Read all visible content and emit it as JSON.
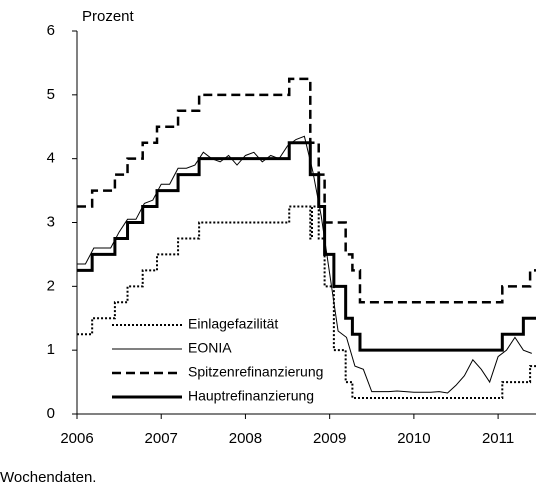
{
  "chart_data": {
    "type": "line",
    "y_label": "Prozent",
    "note": "Wochendaten.",
    "xlim": [
      2006,
      2011.45
    ],
    "xticks": [
      2006,
      2007,
      2008,
      2009,
      2010,
      2011
    ],
    "ylim": [
      0,
      6
    ],
    "yticks": [
      0,
      1,
      2,
      3,
      4,
      5,
      6
    ],
    "series": [
      {
        "name": "Einlagefazilität",
        "color": "#000000",
        "style": "dotted",
        "x": [
          2006,
          2006.18,
          2006.18,
          2006.45,
          2006.45,
          2006.6,
          2006.6,
          2006.78,
          2006.78,
          2006.95,
          2006.95,
          2007.2,
          2007.2,
          2007.45,
          2007.45,
          2008.52,
          2008.52,
          2008.77,
          2008.77,
          2008.79,
          2008.79,
          2008.87,
          2008.87,
          2008.94,
          2008.94,
          2009.05,
          2009.05,
          2009.19,
          2009.19,
          2009.27,
          2009.27,
          2011.05,
          2011.05,
          2011.38,
          2011.38,
          2011.45
        ],
        "values": [
          1.25,
          1.25,
          1.5,
          1.5,
          1.75,
          1.75,
          2,
          2,
          2.25,
          2.25,
          2.5,
          2.5,
          2.75,
          2.75,
          3,
          3,
          3.25,
          3.25,
          2.75,
          2.75,
          3.25,
          3.25,
          2.75,
          2.75,
          2,
          2,
          1,
          1,
          0.5,
          0.5,
          0.25,
          0.25,
          0.5,
          0.5,
          0.75,
          0.75
        ]
      },
      {
        "name": "EONIA",
        "color": "#000000",
        "style": "thin",
        "x": [
          2006,
          2006.1,
          2006.2,
          2006.3,
          2006.4,
          2006.5,
          2006.6,
          2006.7,
          2006.8,
          2006.9,
          2007,
          2007.1,
          2007.2,
          2007.3,
          2007.4,
          2007.5,
          2007.6,
          2007.7,
          2007.8,
          2007.9,
          2008,
          2008.1,
          2008.2,
          2008.3,
          2008.4,
          2008.5,
          2008.6,
          2008.7,
          2008.8,
          2008.9,
          2009,
          2009.1,
          2009.2,
          2009.3,
          2009.4,
          2009.5,
          2009.6,
          2009.7,
          2009.8,
          2009.9,
          2010,
          2010.1,
          2010.2,
          2010.3,
          2010.4,
          2010.5,
          2010.6,
          2010.7,
          2010.8,
          2010.9,
          2011,
          2011.1,
          2011.2,
          2011.3,
          2011.4
        ],
        "values": [
          2.35,
          2.35,
          2.6,
          2.6,
          2.6,
          2.85,
          3.05,
          3.05,
          3.3,
          3.35,
          3.6,
          3.6,
          3.85,
          3.85,
          3.9,
          4.1,
          4.0,
          3.95,
          4.05,
          3.9,
          4.05,
          4.1,
          3.95,
          4.05,
          4.0,
          4.2,
          4.3,
          4.35,
          3.8,
          3.1,
          2.2,
          1.3,
          1.2,
          0.75,
          0.7,
          0.35,
          0.35,
          0.35,
          0.36,
          0.35,
          0.34,
          0.34,
          0.34,
          0.35,
          0.33,
          0.45,
          0.6,
          0.85,
          0.7,
          0.5,
          0.9,
          1.0,
          1.2,
          1.0,
          0.95
        ]
      },
      {
        "name": "Spitzenrefinanzierung",
        "color": "#000000",
        "style": "dashed",
        "x": [
          2006,
          2006.18,
          2006.18,
          2006.45,
          2006.45,
          2006.6,
          2006.6,
          2006.78,
          2006.78,
          2006.95,
          2006.95,
          2007.2,
          2007.2,
          2007.45,
          2007.45,
          2008.52,
          2008.52,
          2008.77,
          2008.77,
          2008.87,
          2008.87,
          2008.94,
          2008.94,
          2009.19,
          2009.19,
          2009.27,
          2009.27,
          2009.36,
          2009.36,
          2011.05,
          2011.05,
          2011.38,
          2011.38,
          2011.45
        ],
        "values": [
          3.25,
          3.25,
          3.5,
          3.5,
          3.75,
          3.75,
          4,
          4,
          4.25,
          4.25,
          4.5,
          4.5,
          4.75,
          4.75,
          5,
          5,
          5.25,
          5.25,
          4.25,
          4.25,
          3.75,
          3.75,
          3,
          3,
          2.5,
          2.5,
          2.25,
          2.25,
          1.75,
          1.75,
          2,
          2,
          2.25,
          2.25
        ]
      },
      {
        "name": "Hauptrefinanzierung",
        "color": "#000000",
        "style": "thick",
        "x": [
          2006,
          2006.18,
          2006.18,
          2006.45,
          2006.45,
          2006.6,
          2006.6,
          2006.78,
          2006.78,
          2006.95,
          2006.95,
          2007.2,
          2007.2,
          2007.45,
          2007.45,
          2008.52,
          2008.52,
          2008.77,
          2008.77,
          2008.87,
          2008.87,
          2008.94,
          2008.94,
          2009.05,
          2009.05,
          2009.19,
          2009.19,
          2009.27,
          2009.27,
          2009.36,
          2009.36,
          2011.05,
          2011.05,
          2011.3,
          2011.3,
          2011.45
        ],
        "values": [
          2.25,
          2.25,
          2.5,
          2.5,
          2.75,
          2.75,
          3,
          3,
          3.25,
          3.25,
          3.5,
          3.5,
          3.75,
          3.75,
          4,
          4,
          4.25,
          4.25,
          3.75,
          3.75,
          3.25,
          3.25,
          2.5,
          2.5,
          2,
          2,
          1.5,
          1.5,
          1.25,
          1.25,
          1,
          1,
          1.25,
          1.25,
          1.5,
          1.5
        ]
      }
    ]
  }
}
